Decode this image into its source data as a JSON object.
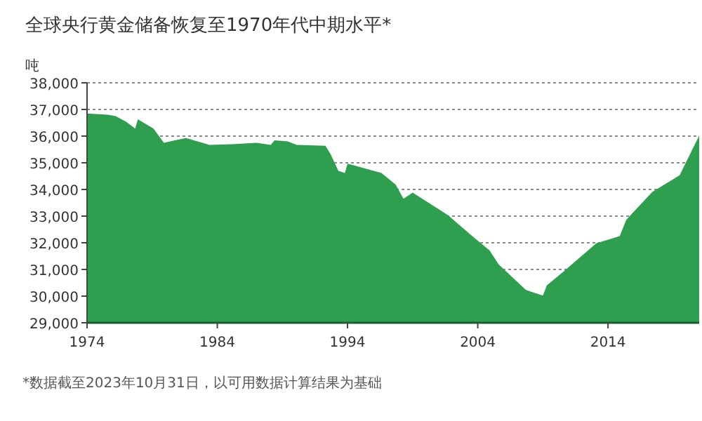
{
  "chart_data": {
    "type": "area",
    "title": "全球央行黄金储备恢复至1970年代中期水平*",
    "ylabel": "吨",
    "annotations": [
      "*数据截至2023年10月31日，以可用数据计算结果为基础"
    ],
    "x": [
      1974,
      1975.6,
      1976.2,
      1977.0,
      1977.7,
      1977.9,
      1979.1,
      1979.9,
      1981.6,
      1983.4,
      1985.2,
      1987.0,
      1988.1,
      1988.4,
      1989.4,
      1990.1,
      1992.3,
      1992.7,
      1993.3,
      1993.8,
      1994.0,
      1996.6,
      1997.7,
      1998.3,
      1999.0,
      2001.7,
      2003.8,
      2004.9,
      2005.6,
      2007.7,
      2009.0,
      2009.3,
      2010.6,
      2013.1,
      2014.9,
      2015.4,
      2017.4,
      2019.5,
      2021
    ],
    "series": [
      {
        "color": "#2e9e4f",
        "values": [
          36850,
          36800,
          36750,
          36540,
          36280,
          36630,
          36280,
          35750,
          35930,
          35670,
          35700,
          35750,
          35670,
          35840,
          35800,
          35670,
          35640,
          35320,
          34700,
          34620,
          34970,
          34620,
          34180,
          33650,
          33880,
          33040,
          32160,
          31720,
          31190,
          30230,
          30020,
          30400,
          30930,
          31980,
          32250,
          32860,
          33910,
          34530,
          36020
        ]
      }
    ],
    "xlim": [
      1974,
      2021
    ],
    "xticks": [
      1974,
      1984,
      1994,
      2004,
      2014
    ],
    "ylim": [
      29000,
      38000
    ],
    "yticks": [
      {
        "value": 29000,
        "label": "29,000"
      },
      {
        "value": 30000,
        "label": "30,000"
      },
      {
        "value": 31000,
        "label": "31,000"
      },
      {
        "value": 32000,
        "label": "32,000"
      },
      {
        "value": 33000,
        "label": "33,000"
      },
      {
        "value": 34000,
        "label": "34,000"
      },
      {
        "value": 35000,
        "label": "35,000"
      },
      {
        "value": 36000,
        "label": "36,000"
      },
      {
        "value": 37000,
        "label": "37,000"
      },
      {
        "value": 38000,
        "label": "38,000"
      }
    ],
    "grid": "y"
  }
}
